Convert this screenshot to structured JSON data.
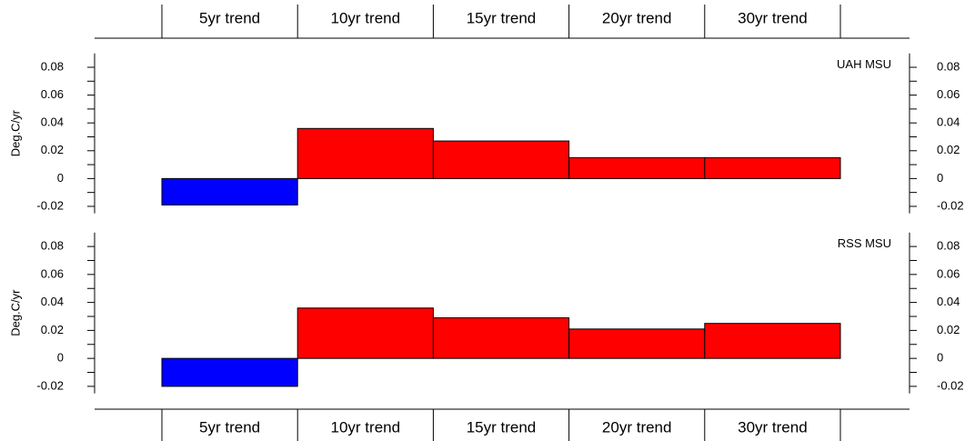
{
  "chart_data": [
    {
      "type": "bar",
      "title": "UAH MSU",
      "ylabel": "Deg.C/yr",
      "categories": [
        "5yr trend",
        "10yr trend",
        "15yr trend",
        "20yr trend",
        "30yr trend"
      ],
      "values": [
        -0.019,
        0.036,
        0.027,
        0.015,
        0.015
      ],
      "colors": [
        "#0000ff",
        "#ff0000",
        "#ff0000",
        "#ff0000",
        "#ff0000"
      ],
      "ylim": [
        -0.025,
        0.09
      ],
      "yticks": [
        -0.02,
        0,
        0.02,
        0.04,
        0.06,
        0.08
      ],
      "yminor": [
        -0.01,
        0.01,
        0.03,
        0.05,
        0.07
      ]
    },
    {
      "type": "bar",
      "title": "RSS MSU",
      "ylabel": "Deg.C/yr",
      "categories": [
        "5yr trend",
        "10yr trend",
        "15yr trend",
        "20yr trend",
        "30yr trend"
      ],
      "values": [
        -0.02,
        0.036,
        0.029,
        0.021,
        0.025
      ],
      "colors": [
        "#0000ff",
        "#ff0000",
        "#ff0000",
        "#ff0000",
        "#ff0000"
      ],
      "ylim": [
        -0.025,
        0.09
      ],
      "yticks": [
        -0.02,
        0,
        0.02,
        0.04,
        0.06,
        0.08
      ],
      "yminor": [
        -0.01,
        0.01,
        0.03,
        0.05,
        0.07
      ]
    }
  ]
}
